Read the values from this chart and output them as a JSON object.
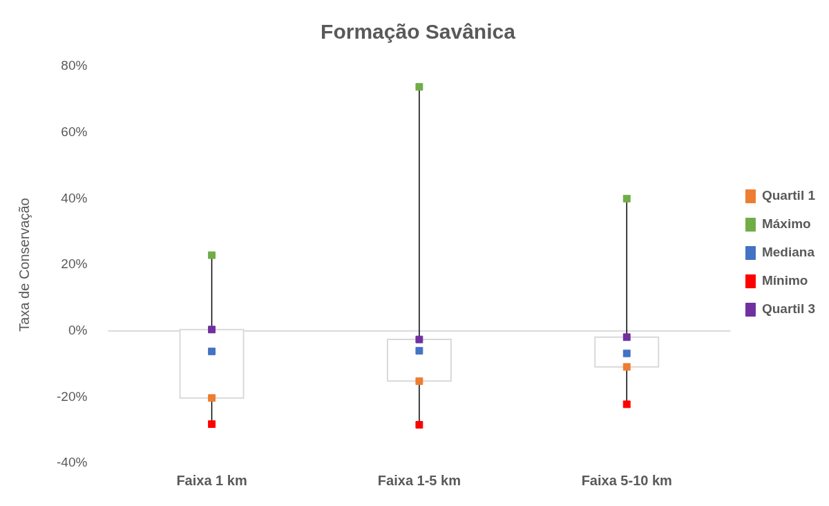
{
  "chart_data": {
    "type": "box",
    "title": "Formação Savânica",
    "ylabel": "Taxa de Conservação",
    "categories": [
      "Faixa 1 km",
      "Faixa 1-5 km",
      "Faixa 5-10 km"
    ],
    "boxes": [
      {
        "low": -28.2,
        "q1": -20.3,
        "q3": 0.4,
        "high": 22.9
      },
      {
        "low": -28.4,
        "q1": -15.2,
        "q3": -2.6,
        "high": 73.8
      },
      {
        "low": -22.2,
        "q1": -10.9,
        "q3": -1.9,
        "high": 40
      }
    ],
    "series": [
      {
        "name": "Quartil 1",
        "type": "scatter",
        "color": "#ed7d31",
        "x": [
          "Faixa 1 km",
          "Faixa 1-5 km",
          "Faixa 5-10 km"
        ],
        "values": [
          -20.3,
          -15.2,
          -10.9
        ]
      },
      {
        "name": "Máximo",
        "type": "scatter",
        "color": "#70ad47",
        "x": [
          "Faixa 1 km",
          "Faixa 1-5 km",
          "Faixa 5-10 km"
        ],
        "values": [
          22.9,
          73.8,
          40
        ]
      },
      {
        "name": "Mediana",
        "type": "scatter",
        "color": "#4472c4",
        "x": [
          "Faixa 1 km",
          "Faixa 1-5 km",
          "Faixa 5-10 km"
        ],
        "values": [
          -6.2,
          -6,
          -6.8
        ]
      },
      {
        "name": "Mínimo",
        "type": "scatter",
        "color": "#ff0000",
        "x": [
          "Faixa 1 km",
          "Faixa 1-5 km",
          "Faixa 5-10 km"
        ],
        "values": [
          -28.2,
          -28.4,
          -22.2
        ]
      },
      {
        "name": "Quartil 3",
        "type": "scatter",
        "color": "#7030a0",
        "x": [
          "Faixa 1 km",
          "Faixa 1-5 km",
          "Faixa 5-10 km"
        ],
        "values": [
          0.4,
          -2.6,
          -1.9
        ]
      }
    ],
    "ylim": [
      -40,
      80
    ],
    "yticks": [
      {
        "value": -40,
        "label": "-40%"
      },
      {
        "value": -20,
        "label": "-20%"
      },
      {
        "value": 0,
        "label": "0%"
      },
      {
        "value": 20,
        "label": "20%"
      },
      {
        "value": 40,
        "label": "40%"
      },
      {
        "value": 60,
        "label": "60%"
      },
      {
        "value": 80,
        "label": "80%"
      }
    ],
    "ref_lines": [
      {
        "axis": "y",
        "value": 0,
        "color": "#d9d9d9"
      }
    ],
    "grid": false,
    "legend": "right",
    "marker": "square"
  }
}
